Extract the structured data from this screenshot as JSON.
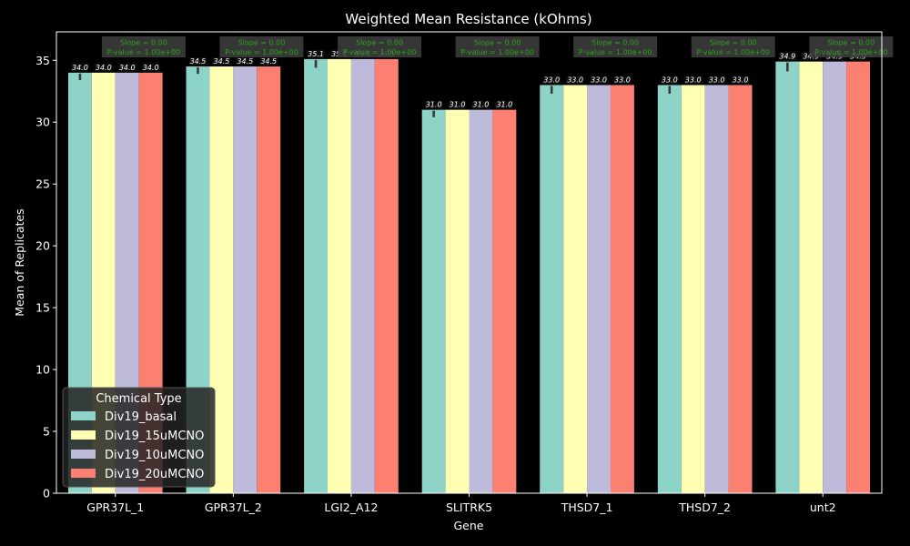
{
  "chart_data": {
    "type": "bar",
    "title": "Weighted Mean Resistance (kOhms)",
    "xlabel": "Gene",
    "ylabel": "Mean of Replicates",
    "ylim": [
      0,
      37.3
    ],
    "yticks": [
      0,
      5,
      10,
      15,
      20,
      25,
      30,
      35
    ],
    "categories": [
      "GPR37L_1",
      "GPR37L_2",
      "LGI2_A12",
      "SLITRK5",
      "THSD7_1",
      "THSD7_2",
      "unt2"
    ],
    "series": [
      {
        "name": "Div19_basal",
        "color": "#8dd3c7",
        "values": [
          34.0,
          34.5,
          35.1,
          31.0,
          33.0,
          33.0,
          34.9
        ],
        "error_low": [
          33.4,
          33.9,
          34.4,
          30.4,
          32.3,
          32.3,
          34.1
        ]
      },
      {
        "name": "Div19_15uMCNO",
        "color": "#ffffb3",
        "values": [
          34.0,
          34.5,
          35.1,
          31.0,
          33.0,
          33.0,
          34.9
        ],
        "error_low": [
          34.0,
          34.5,
          35.1,
          31.0,
          33.0,
          33.0,
          34.9
        ]
      },
      {
        "name": "Div19_10uMCNO",
        "color": "#bebada",
        "values": [
          34.0,
          34.5,
          35.1,
          31.0,
          33.0,
          33.0,
          34.9
        ],
        "error_low": [
          34.0,
          34.5,
          35.1,
          31.0,
          33.0,
          33.0,
          34.9
        ]
      },
      {
        "name": "Div19_20uMCNO",
        "color": "#fb8072",
        "values": [
          34.0,
          34.5,
          35.1,
          31.0,
          33.0,
          33.0,
          34.9
        ],
        "error_low": [
          34.0,
          34.5,
          35.1,
          31.0,
          33.0,
          33.0,
          34.9
        ]
      }
    ],
    "bar_value_labels": [
      "34.0",
      "34.5",
      "35.1",
      "31.0",
      "33.0",
      "33.0",
      "34.9"
    ],
    "annotations": [
      {
        "line1": "Slope = 0.00",
        "line2": "P-value = 1.00e+00"
      },
      {
        "line1": "Slope = 0.00",
        "line2": "P-value = 1.00e+00"
      },
      {
        "line1": "Slope = 0.00",
        "line2": "P-value = 1.00e+00"
      },
      {
        "line1": "Slope = 0.00",
        "line2": "P-value = 1.00e+00"
      },
      {
        "line1": "Slope = 0.00",
        "line2": "P-value = 1.00e+00"
      },
      {
        "line1": "Slope = 0.00",
        "line2": "P-value = 1.00e+00"
      },
      {
        "line1": "Slope = 0.00",
        "line2": "P-value = 1.00e+00"
      }
    ],
    "legend": {
      "title": "Chemical Type",
      "position": "lower-left"
    },
    "grid": false
  }
}
